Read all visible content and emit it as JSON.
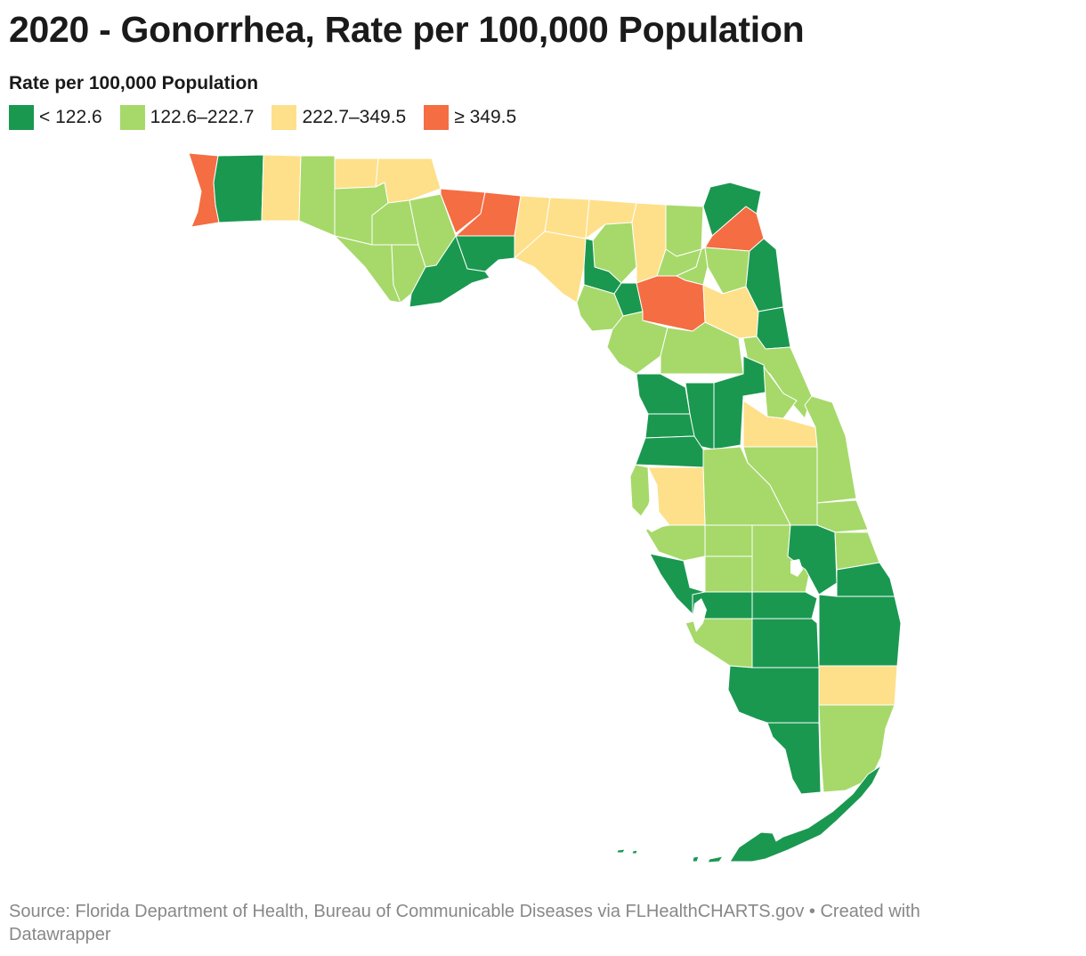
{
  "title": "2020 - Gonorrhea, Rate per 100,000 Population",
  "legend": {
    "title": "Rate per 100,000 Population",
    "items": [
      {
        "label": "< 122.6",
        "color": "#1a9850"
      },
      {
        "label": "122.6–222.7",
        "color": "#a6d96a"
      },
      {
        "label": "222.7–349.5",
        "color": "#fee08b"
      },
      {
        "label": "≥ 349.5",
        "color": "#f46d43"
      }
    ]
  },
  "source": {
    "text": "Source: Florida Department of Health, Bureau of Communicable Diseases via FLHealthCHARTS.gov • Created with Datawrapper"
  }
}
